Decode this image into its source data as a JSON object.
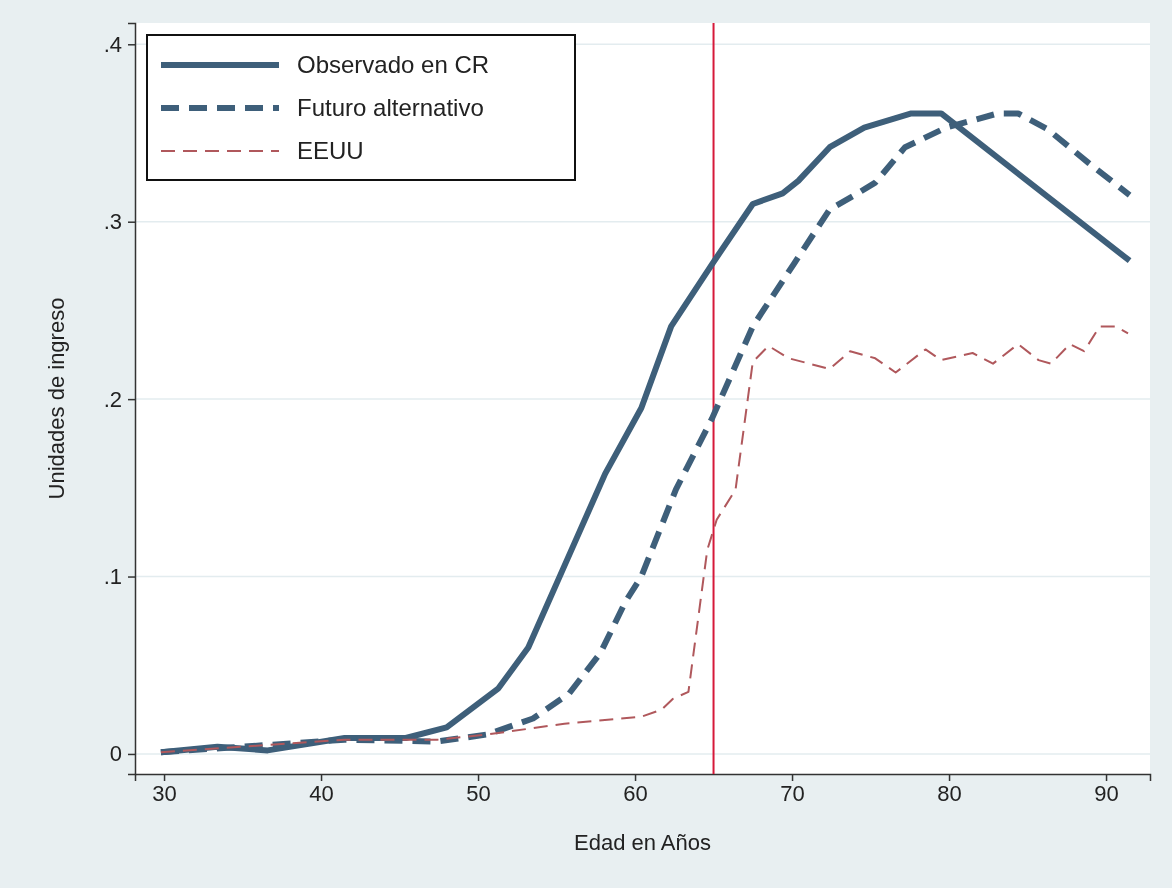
{
  "chart_data": {
    "type": "line",
    "xlabel": "Edad en Años",
    "ylabel": "Unidades de ingreso",
    "xlim": [
      28.15,
      92.8
    ],
    "ylim": [
      -0.0113,
      0.412
    ],
    "xticks": [
      30,
      40,
      50,
      60,
      70,
      80,
      90
    ],
    "yticks": [
      0,
      {
        "value": 0.1,
        "label": ".1"
      },
      {
        "value": 0.2,
        "label": ".2"
      },
      {
        "value": 0.3,
        "label": ".3"
      },
      {
        "value": 0.4,
        "label": ".4"
      }
    ],
    "grid": "y",
    "legend": "top left",
    "ref_lines": [
      {
        "axis": "x",
        "value": 65,
        "color": "#d6193a",
        "line_style": "solid"
      }
    ],
    "series": [
      {
        "name": "Observado en CR",
        "color": "#3e5f7a",
        "line_style": "solid",
        "x": [
          29.8,
          33.4,
          36.6,
          41.5,
          45.4,
          48.0,
          51.3,
          53.2,
          55.5,
          58.1,
          60.4,
          62.3,
          64.9,
          67.5,
          69.4,
          70.4,
          72.4,
          74.6,
          77.6,
          79.5,
          91.5
        ],
        "values": [
          0.001,
          0.004,
          0.002,
          0.009,
          0.009,
          0.015,
          0.037,
          0.06,
          0.106,
          0.158,
          0.195,
          0.241,
          0.276,
          0.31,
          0.316,
          0.323,
          0.342,
          0.353,
          0.361,
          0.361,
          0.278
        ]
      },
      {
        "name": "Futuro alternativo",
        "color": "#3e5f7a",
        "line_style": "dashed",
        "x": [
          29.8,
          41.5,
          47.4,
          50.6,
          53.5,
          55.8,
          57.8,
          59.4,
          60.4,
          62.6,
          64.9,
          67.5,
          70.1,
          72.4,
          74.0,
          75.3,
          77.2,
          79.8,
          83.1,
          84.4,
          86.3,
          88.9,
          91.5
        ],
        "values": [
          0.001,
          0.008,
          0.007,
          0.011,
          0.02,
          0.034,
          0.057,
          0.086,
          0.1,
          0.149,
          0.189,
          0.241,
          0.276,
          0.307,
          0.315,
          0.322,
          0.342,
          0.353,
          0.361,
          0.361,
          0.352,
          0.333,
          0.315
        ]
      },
      {
        "name": "EEUU",
        "color": "#b0585c",
        "line_style": "dashed",
        "x": [
          29.8,
          41.5,
          47.4,
          50.6,
          55.5,
          60.4,
          61.7,
          62.4,
          63.4,
          64.6,
          65.2,
          66.4,
          67.5,
          68.5,
          69.8,
          72.4,
          73.7,
          75.3,
          76.6,
          78.5,
          79.5,
          81.5,
          82.8,
          84.4,
          85.7,
          86.5,
          87.7,
          88.6,
          89.6,
          90.6,
          91.4
        ],
        "values": [
          0.001,
          0.008,
          0.008,
          0.011,
          0.017,
          0.021,
          0.025,
          0.031,
          0.035,
          0.115,
          0.132,
          0.149,
          0.221,
          0.23,
          0.223,
          0.217,
          0.227,
          0.223,
          0.215,
          0.228,
          0.222,
          0.226,
          0.22,
          0.231,
          0.222,
          0.22,
          0.231,
          0.227,
          0.241,
          0.241,
          0.237
        ]
      }
    ]
  }
}
